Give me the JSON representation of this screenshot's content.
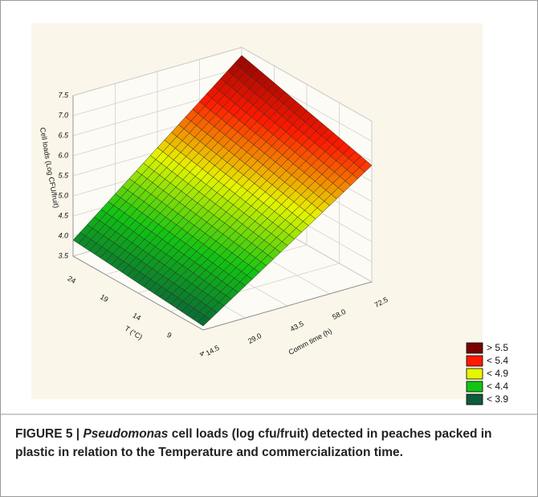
{
  "chart_data": {
    "type": "surface",
    "xlabel": "Comm time (h)",
    "ylabel": "T (°C)",
    "zlabel": "Cell loads (Log CFU/fruit)",
    "x": [
      14.5,
      29.0,
      43.5,
      58.0,
      72.5
    ],
    "y": [
      4,
      9,
      14,
      19,
      24
    ],
    "z": [
      [
        3.6,
        4.3,
        5.0,
        5.7,
        6.4
      ],
      [
        3.68,
        4.41,
        5.15,
        5.89,
        6.63
      ],
      [
        3.75,
        4.53,
        5.3,
        6.08,
        6.85
      ],
      [
        3.83,
        4.64,
        5.45,
        6.26,
        7.08
      ],
      [
        3.9,
        4.75,
        5.6,
        6.45,
        7.3
      ]
    ],
    "xlim": [
      14.5,
      72.5
    ],
    "xticks": [
      14.5,
      {
        "value": 29,
        "label": "29.0"
      },
      43.5,
      {
        "value": 58,
        "label": "58.0"
      },
      72.5
    ],
    "ylim": [
      4,
      24
    ],
    "yticks": [
      4,
      9,
      14,
      19,
      24
    ],
    "zlim": [
      3.5,
      7.5
    ],
    "zticks": [
      3.5,
      {
        "value": 4,
        "label": "4.0"
      },
      4.5,
      {
        "value": 5,
        "label": "5.0"
      },
      5.5,
      {
        "value": 6,
        "label": "6.0"
      },
      6.5,
      {
        "value": 7,
        "label": "7.0"
      },
      7.5
    ],
    "grid": true,
    "legend": [
      {
        "name": "> 5.5",
        "color": "#7a0000"
      },
      {
        "name": "< 5.4",
        "color": "#ff1a00"
      },
      {
        "name": "< 4.9",
        "color": "#e6f500"
      },
      {
        "name": "< 4.4",
        "color": "#12c412"
      },
      {
        "name": "< 3.9",
        "color": "#0b5c3a"
      }
    ],
    "legend_position": "lower right"
  },
  "caption": {
    "label": "FIGURE 5 |",
    "organism": "Pseudomonas",
    "text": "cell loads (log cfu/fruit) detected in peaches packed in plastic in relation to the Temperature and commercialization time."
  }
}
